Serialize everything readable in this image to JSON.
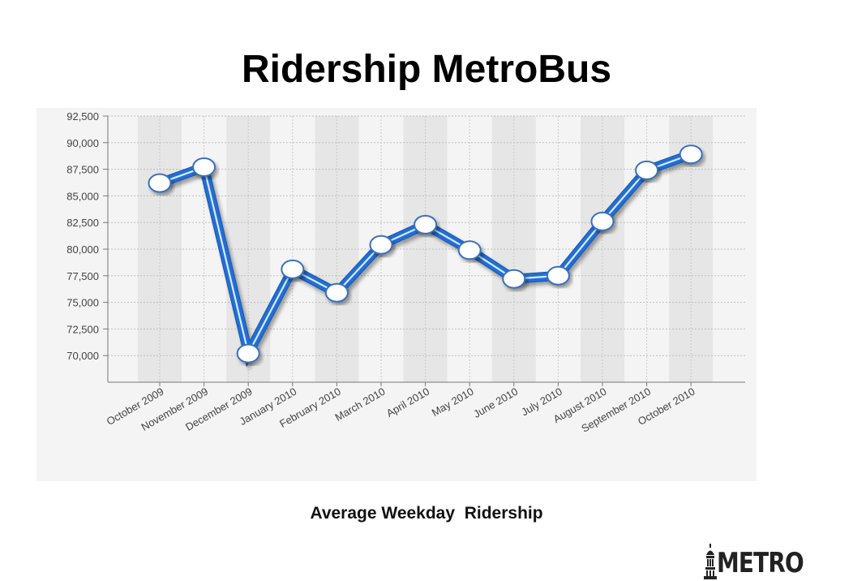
{
  "title": "Ridership MetroBus",
  "caption": "Average Weekday  Ridership",
  "logo": {
    "text": "METRO",
    "icon": "capitol-dome-icon"
  },
  "chart_data": {
    "type": "line",
    "title": "Ridership MetroBus",
    "xlabel": "Average Weekday  Ridership",
    "ylabel": "",
    "categories": [
      "October 2009",
      "November 2009",
      "December 2009",
      "January 2010",
      "February 2010",
      "March 2010",
      "April 2010",
      "May 2010",
      "June 2010",
      "July 2010",
      "August 2010",
      "September 2010",
      "October 2010"
    ],
    "series": [
      {
        "values": [
          86200,
          87700,
          70200,
          78100,
          75900,
          80400,
          82300,
          79900,
          77200,
          77500,
          82600,
          87400,
          88900
        ]
      }
    ],
    "ylim": [
      67500,
      92500
    ],
    "yticks": [
      70000,
      72500,
      75000,
      77500,
      80000,
      82500,
      85000,
      87500,
      90000,
      92500
    ],
    "ytick_labels": [
      "70,000",
      "72,500",
      "75,000",
      "77,500",
      "80,000",
      "82,500",
      "85,000",
      "87,500",
      "90,000",
      "92,500"
    ],
    "grid": true,
    "legend": "none",
    "colors": {
      "line": "#1f6fd6",
      "line_highlight": "#ffffff",
      "marker_fill": "#ffffff",
      "marker_stroke": "#3a6fb8",
      "band": "#e6e6e6",
      "panel": "#f4f4f4"
    }
  }
}
